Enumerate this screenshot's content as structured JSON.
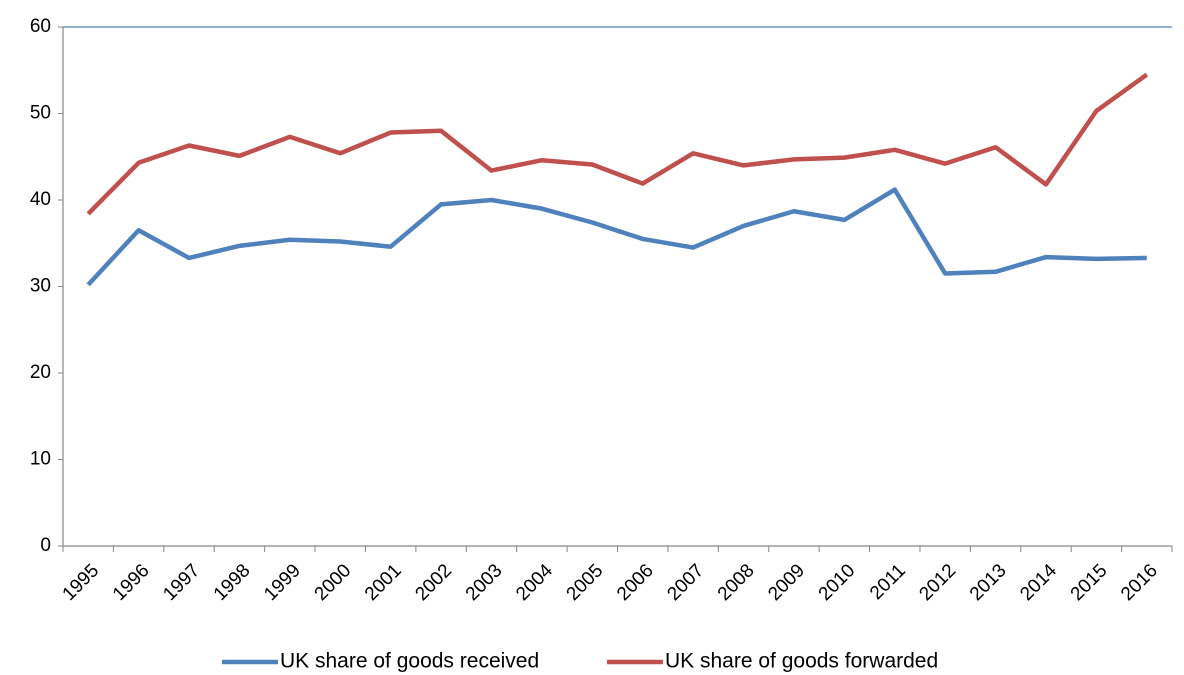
{
  "chart_data": {
    "type": "line",
    "categories": [
      "1995",
      "1996",
      "1997",
      "1998",
      "1999",
      "2000",
      "2001",
      "2002",
      "2003",
      "2004",
      "2005",
      "2006",
      "2007",
      "2008",
      "2009",
      "2010",
      "2011",
      "2012",
      "2013",
      "2014",
      "2015",
      "2016"
    ],
    "series": [
      {
        "name": "UK share of goods received",
        "color": "#4f81bd",
        "values": [
          30.2,
          36.5,
          33.3,
          34.7,
          35.4,
          35.2,
          34.6,
          39.5,
          40.0,
          39.0,
          37.4,
          35.5,
          34.5,
          37.0,
          38.7,
          37.7,
          41.2,
          31.5,
          31.7,
          33.4,
          33.2,
          33.3
        ]
      },
      {
        "name": "UK share of goods forwarded",
        "color": "#c0504d",
        "values": [
          38.4,
          44.3,
          46.3,
          45.1,
          47.3,
          45.4,
          47.8,
          48.0,
          43.4,
          44.6,
          44.1,
          41.9,
          45.4,
          44.0,
          44.7,
          44.9,
          45.8,
          44.2,
          46.1,
          41.8,
          50.3,
          54.5
        ]
      }
    ],
    "ylim": [
      0,
      60
    ],
    "yticks": [
      0,
      10,
      20,
      30,
      40,
      50,
      60
    ],
    "grid": false,
    "legend": "bottom"
  }
}
